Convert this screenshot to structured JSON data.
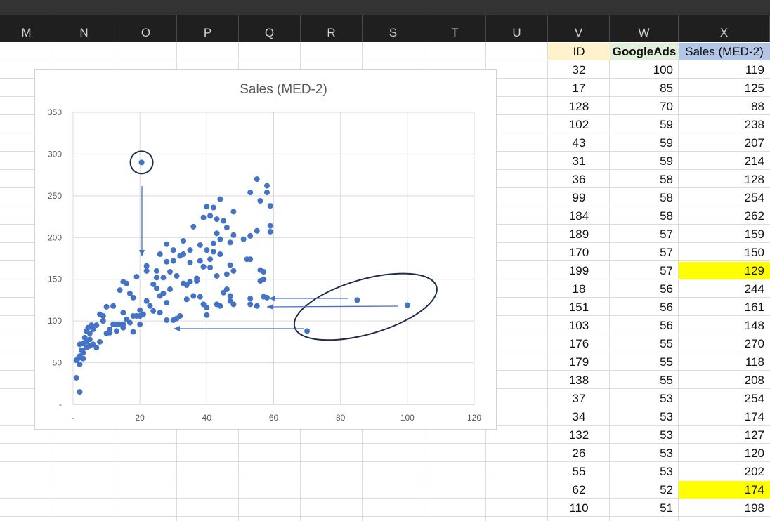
{
  "columns": [
    "M",
    "N",
    "O",
    "P",
    "Q",
    "R",
    "S",
    "T",
    "U",
    "V",
    "W",
    "X"
  ],
  "table": {
    "headers": [
      "ID",
      "GoogleAds",
      "Sales (MED-2)"
    ],
    "header_colors": [
      "#fff2cc",
      "#e2efda",
      "#b4c6e7"
    ],
    "highlight_color": "#ffff00",
    "rows": [
      {
        "id": "32",
        "ads": "100",
        "sales": "119",
        "hl": false
      },
      {
        "id": "17",
        "ads": "85",
        "sales": "125",
        "hl": false
      },
      {
        "id": "128",
        "ads": "70",
        "sales": "88",
        "hl": false
      },
      {
        "id": "102",
        "ads": "59",
        "sales": "238",
        "hl": false
      },
      {
        "id": "43",
        "ads": "59",
        "sales": "207",
        "hl": false
      },
      {
        "id": "31",
        "ads": "59",
        "sales": "214",
        "hl": false
      },
      {
        "id": "36",
        "ads": "58",
        "sales": "128",
        "hl": false
      },
      {
        "id": "99",
        "ads": "58",
        "sales": "254",
        "hl": false
      },
      {
        "id": "184",
        "ads": "58",
        "sales": "262",
        "hl": false
      },
      {
        "id": "189",
        "ads": "57",
        "sales": "159",
        "hl": false
      },
      {
        "id": "170",
        "ads": "57",
        "sales": "150",
        "hl": false
      },
      {
        "id": "199",
        "ads": "57",
        "sales": "129",
        "hl": true
      },
      {
        "id": "18",
        "ads": "56",
        "sales": "244",
        "hl": false
      },
      {
        "id": "151",
        "ads": "56",
        "sales": "161",
        "hl": false
      },
      {
        "id": "103",
        "ads": "56",
        "sales": "148",
        "hl": false
      },
      {
        "id": "176",
        "ads": "55",
        "sales": "270",
        "hl": false
      },
      {
        "id": "179",
        "ads": "55",
        "sales": "118",
        "hl": false
      },
      {
        "id": "138",
        "ads": "55",
        "sales": "208",
        "hl": false
      },
      {
        "id": "37",
        "ads": "53",
        "sales": "254",
        "hl": false
      },
      {
        "id": "34",
        "ads": "53",
        "sales": "174",
        "hl": false
      },
      {
        "id": "132",
        "ads": "53",
        "sales": "127",
        "hl": false
      },
      {
        "id": "26",
        "ads": "53",
        "sales": "120",
        "hl": false
      },
      {
        "id": "55",
        "ads": "53",
        "sales": "202",
        "hl": false
      },
      {
        "id": "62",
        "ads": "52",
        "sales": "174",
        "hl": true
      },
      {
        "id": "110",
        "ads": "51",
        "sales": "198",
        "hl": false
      }
    ]
  },
  "chart_data": {
    "type": "scatter",
    "title": "Sales (MED-2)",
    "xlim": [
      0,
      120
    ],
    "ylim": [
      0,
      350
    ],
    "x_ticks": [
      "-",
      "20",
      "40",
      "60",
      "80",
      "100",
      "120"
    ],
    "y_ticks": [
      "-",
      "50",
      "100",
      "150",
      "200",
      "250",
      "300",
      "350"
    ],
    "grid": true,
    "marker_color": "#4472c4",
    "annotation_color": "#1f2d4a",
    "points": [
      [
        100,
        119
      ],
      [
        85,
        125
      ],
      [
        70,
        88
      ],
      [
        59,
        238
      ],
      [
        59,
        207
      ],
      [
        59,
        214
      ],
      [
        58,
        128
      ],
      [
        58,
        254
      ],
      [
        58,
        262
      ],
      [
        57,
        159
      ],
      [
        57,
        150
      ],
      [
        57,
        129
      ],
      [
        56,
        244
      ],
      [
        56,
        161
      ],
      [
        56,
        148
      ],
      [
        55,
        270
      ],
      [
        55,
        118
      ],
      [
        55,
        208
      ],
      [
        53,
        254
      ],
      [
        53,
        174
      ],
      [
        53,
        127
      ],
      [
        53,
        120
      ],
      [
        53,
        202
      ],
      [
        52,
        174
      ],
      [
        51,
        198
      ],
      [
        20.5,
        290
      ],
      [
        1,
        32
      ],
      [
        2,
        15
      ],
      [
        1,
        53
      ],
      [
        1.5,
        55
      ],
      [
        2,
        48
      ],
      [
        2,
        58
      ],
      [
        2.5,
        65
      ],
      [
        2,
        72
      ],
      [
        3,
        55
      ],
      [
        3,
        62
      ],
      [
        3,
        73
      ],
      [
        3.5,
        80
      ],
      [
        4,
        68
      ],
      [
        4,
        75
      ],
      [
        4,
        88
      ],
      [
        4.5,
        92
      ],
      [
        5,
        70
      ],
      [
        5,
        78
      ],
      [
        5,
        85
      ],
      [
        5.5,
        95
      ],
      [
        6,
        90
      ],
      [
        6,
        72
      ],
      [
        7,
        95
      ],
      [
        7,
        68
      ],
      [
        8,
        108
      ],
      [
        8,
        75
      ],
      [
        9,
        100
      ],
      [
        9,
        106
      ],
      [
        10,
        117
      ],
      [
        10,
        85
      ],
      [
        11,
        86
      ],
      [
        11,
        90
      ],
      [
        12,
        118
      ],
      [
        12,
        96
      ],
      [
        13,
        88
      ],
      [
        13,
        96
      ],
      [
        14,
        137
      ],
      [
        14,
        96
      ],
      [
        15,
        147
      ],
      [
        15,
        110
      ],
      [
        15,
        96
      ],
      [
        15,
        92
      ],
      [
        16,
        145
      ],
      [
        16,
        102
      ],
      [
        17,
        98
      ],
      [
        17,
        133
      ],
      [
        18,
        128
      ],
      [
        18,
        87
      ],
      [
        18,
        106
      ],
      [
        19,
        106
      ],
      [
        19,
        153
      ],
      [
        20,
        96
      ],
      [
        20,
        113
      ],
      [
        20,
        106
      ],
      [
        21,
        108
      ],
      [
        22,
        166
      ],
      [
        22,
        160
      ],
      [
        22,
        124
      ],
      [
        23,
        118
      ],
      [
        24,
        112
      ],
      [
        24,
        144
      ],
      [
        25,
        152
      ],
      [
        25,
        160
      ],
      [
        25,
        139
      ],
      [
        26,
        110
      ],
      [
        26,
        180
      ],
      [
        26,
        130
      ],
      [
        27,
        152
      ],
      [
        27,
        133
      ],
      [
        28,
        192
      ],
      [
        28,
        171
      ],
      [
        28,
        122
      ],
      [
        28,
        101
      ],
      [
        29,
        159
      ],
      [
        29,
        138
      ],
      [
        30,
        185
      ],
      [
        30,
        172
      ],
      [
        30,
        101
      ],
      [
        31,
        103
      ],
      [
        31,
        154
      ],
      [
        32,
        106
      ],
      [
        32,
        178
      ],
      [
        33,
        180
      ],
      [
        33,
        196
      ],
      [
        33,
        145
      ],
      [
        34,
        143
      ],
      [
        34,
        126
      ],
      [
        35,
        147
      ],
      [
        35,
        185
      ],
      [
        35,
        170
      ],
      [
        36,
        213
      ],
      [
        36,
        130
      ],
      [
        37,
        151
      ],
      [
        37,
        148
      ],
      [
        38,
        172
      ],
      [
        38,
        191
      ],
      [
        38,
        129
      ],
      [
        39,
        165
      ],
      [
        39,
        120
      ],
      [
        39,
        224
      ],
      [
        40,
        237
      ],
      [
        40,
        185
      ],
      [
        40,
        116
      ],
      [
        40,
        107
      ],
      [
        41,
        226
      ],
      [
        41,
        174
      ],
      [
        41,
        164
      ],
      [
        42,
        236
      ],
      [
        42,
        193
      ],
      [
        42,
        183
      ],
      [
        43,
        222
      ],
      [
        43,
        205
      ],
      [
        43,
        154
      ],
      [
        43,
        120
      ],
      [
        44,
        246
      ],
      [
        44,
        198
      ],
      [
        44,
        180
      ],
      [
        44,
        118
      ],
      [
        45,
        220
      ],
      [
        45,
        134
      ],
      [
        46,
        212
      ],
      [
        46,
        138
      ],
      [
        46,
        156
      ],
      [
        47,
        194
      ],
      [
        47,
        167
      ],
      [
        47,
        130
      ],
      [
        47,
        124
      ],
      [
        48,
        231
      ],
      [
        48,
        203
      ],
      [
        48,
        160
      ],
      [
        48,
        120
      ]
    ],
    "outlier_circle": {
      "cx": 20.5,
      "cy": 290
    },
    "ellipse_center": [
      87.5,
      117
    ]
  }
}
